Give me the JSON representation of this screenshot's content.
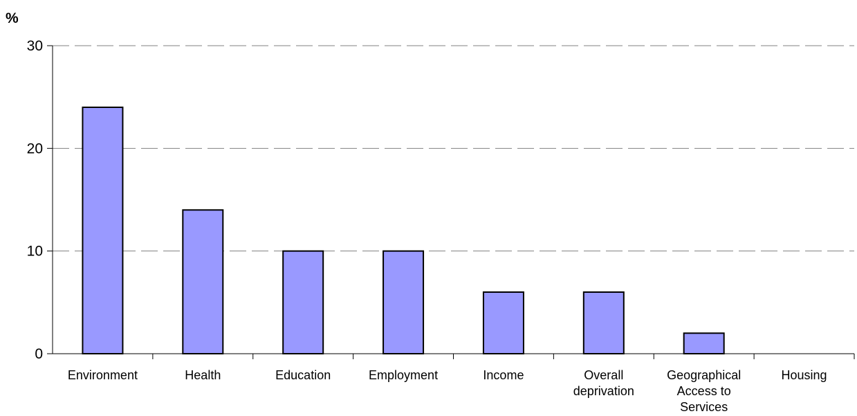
{
  "chart_data": {
    "type": "bar",
    "title": "",
    "xlabel": "",
    "ylabel": "%",
    "ylim": [
      0,
      30
    ],
    "yticks": [
      "0",
      "10",
      "20",
      "30"
    ],
    "grid": true,
    "categories": [
      [
        "Environment"
      ],
      [
        "Health"
      ],
      [
        "Education"
      ],
      [
        "Employment"
      ],
      [
        "Income"
      ],
      [
        "Overall",
        "deprivation"
      ],
      [
        "Geographical",
        "Access to",
        "Services"
      ],
      [
        "Housing"
      ]
    ],
    "values": [
      24,
      14,
      10,
      10,
      6,
      6,
      2,
      0
    ],
    "colors": {
      "bar_fill": "#9999ff",
      "bar_stroke": "#000000",
      "grid": "#808080",
      "axis": "#000000"
    }
  }
}
